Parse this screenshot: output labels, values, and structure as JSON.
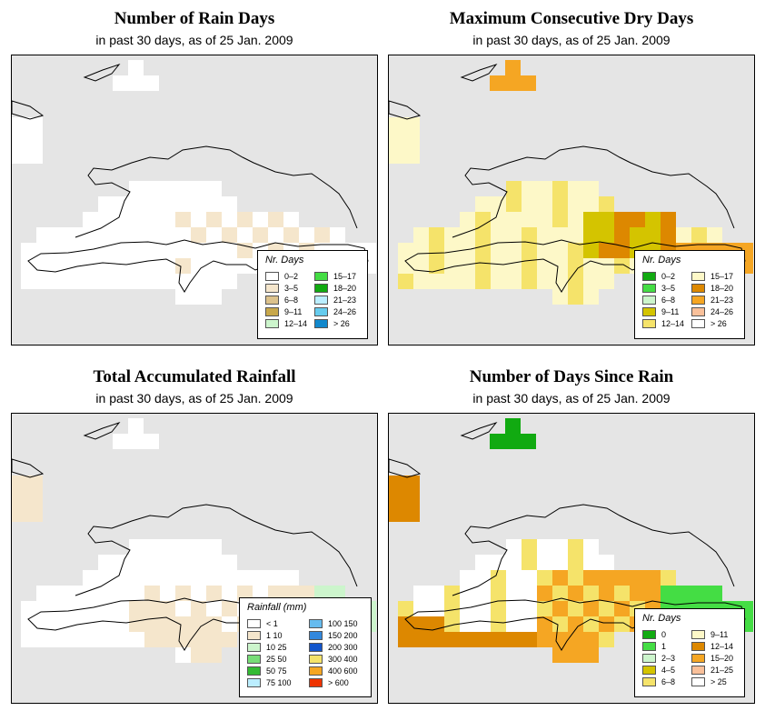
{
  "panels": [
    {
      "id": "rain-days",
      "title": "Number of Rain Days",
      "subtitle": "in past 30 days, as of  25 Jan. 2009",
      "legend": {
        "title": "Nr. Days",
        "items": [
          {
            "label": "0–2",
            "color": "#ffffff"
          },
          {
            "label": "3–5",
            "color": "#f5e6cc"
          },
          {
            "label": "6–8",
            "color": "#dcc28c"
          },
          {
            "label": "9–11",
            "color": "#c8a84b"
          },
          {
            "label": "12–14",
            "color": "#ccf5cc"
          },
          {
            "label": "15–17",
            "color": "#44dd44"
          },
          {
            "label": "18–20",
            "color": "#11aa11"
          },
          {
            "label": "21–23",
            "color": "#bbeeff"
          },
          {
            "label": "24–26",
            "color": "#66ccee"
          },
          {
            "label": "> 26",
            "color": "#1188cc"
          }
        ]
      }
    },
    {
      "id": "dry-days",
      "title": "Maximum Consecutive Dry Days",
      "subtitle": "in past 30 days, as of  25 Jan. 2009",
      "legend": {
        "title": "Nr. Days",
        "items": [
          {
            "label": "0–2",
            "color": "#11aa11"
          },
          {
            "label": "3–5",
            "color": "#44dd44"
          },
          {
            "label": "6–8",
            "color": "#ccf5cc"
          },
          {
            "label": "9–11",
            "color": "#d4c400"
          },
          {
            "label": "12–14",
            "color": "#f5e36a"
          },
          {
            "label": "15–17",
            "color": "#fdf8c8"
          },
          {
            "label": "18–20",
            "color": "#dd8800"
          },
          {
            "label": "21–23",
            "color": "#f5a623"
          },
          {
            "label": "24–26",
            "color": "#f9c09a"
          },
          {
            "label": "> 26",
            "color": "#ffffff"
          }
        ]
      }
    },
    {
      "id": "rainfall",
      "title": "Total Accumulated Rainfall",
      "subtitle": "in past 30 days, as of  25 Jan. 2009",
      "legend": {
        "title": "Rainfall (mm)",
        "items": [
          {
            "label": "< 1",
            "color": "#ffffff"
          },
          {
            "label": "1    10",
            "color": "#f5e6cc"
          },
          {
            "label": "10   25",
            "color": "#ccf5cc"
          },
          {
            "label": "25   50",
            "color": "#77dd77"
          },
          {
            "label": "50   75",
            "color": "#33bb33"
          },
          {
            "label": "75  100",
            "color": "#bbeeff"
          },
          {
            "label": "100  150",
            "color": "#66bbee"
          },
          {
            "label": "150  200",
            "color": "#3388dd"
          },
          {
            "label": "200  300",
            "color": "#1155cc"
          },
          {
            "label": "300  400",
            "color": "#f5e36a"
          },
          {
            "label": "400  600",
            "color": "#f5a623"
          },
          {
            "label": "> 600",
            "color": "#ee3300"
          }
        ]
      }
    },
    {
      "id": "days-since-rain",
      "title": "Number of Days Since Rain",
      "subtitle": "in past 30 days, as of  25 Jan. 2009",
      "legend": {
        "title": "Nr. Days",
        "items": [
          {
            "label": "0",
            "color": "#11aa11"
          },
          {
            "label": "1",
            "color": "#44dd44"
          },
          {
            "label": "2–3",
            "color": "#ccf5cc"
          },
          {
            "label": "4–5",
            "color": "#d4c400"
          },
          {
            "label": "6–8",
            "color": "#f5e36a"
          },
          {
            "label": "9–11",
            "color": "#fdf8c8"
          },
          {
            "label": "12–14",
            "color": "#dd8800"
          },
          {
            "label": "15–20",
            "color": "#f5a623"
          },
          {
            "label": "21–25",
            "color": "#f9c09a"
          },
          {
            "label": "> 25",
            "color": "#ffffff"
          }
        ]
      }
    }
  ]
}
